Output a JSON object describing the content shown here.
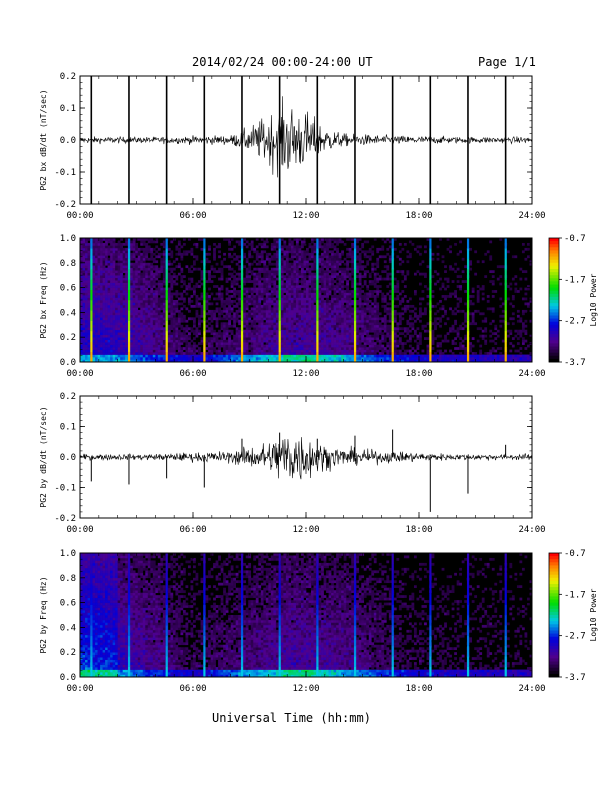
{
  "header": {
    "title": "2014/02/24  00:00-24:00 UT",
    "page": "Page 1/1"
  },
  "footer": {
    "xlabel": "Universal Time (hh:mm)"
  },
  "chart_data": [
    {
      "type": "line",
      "ylabel": "PG2 bx dB/dt (nT/sec)",
      "xlim": [
        "00:00",
        "24:00"
      ],
      "ylim": [
        -0.2,
        0.2
      ],
      "x_ticks": [
        "00:00",
        "06:00",
        "12:00",
        "18:00",
        "24:00"
      ],
      "y_ticks": [
        "-0.2",
        "-0.1",
        "0.0",
        "0.1",
        "0.2"
      ],
      "noise_envelope": {
        "x_hours": [
          0,
          4,
          8,
          9,
          10,
          11,
          12,
          13,
          14,
          16,
          20,
          24
        ],
        "amplitude": [
          0.01,
          0.01,
          0.015,
          0.04,
          0.08,
          0.12,
          0.09,
          0.04,
          0.02,
          0.015,
          0.01,
          0.01
        ]
      },
      "spikes": [
        {
          "x_hours": 0.6,
          "y": -0.2
        },
        {
          "x_hours": 2.6,
          "y": -0.2
        },
        {
          "x_hours": 4.6,
          "y": -0.2
        },
        {
          "x_hours": 6.6,
          "y": -0.2
        },
        {
          "x_hours": 8.6,
          "y": -0.2
        },
        {
          "x_hours": 10.6,
          "y": -0.2
        },
        {
          "x_hours": 12.6,
          "y": -0.2
        },
        {
          "x_hours": 14.6,
          "y": -0.2
        },
        {
          "x_hours": 16.6,
          "y": -0.2
        },
        {
          "x_hours": 18.6,
          "y": -0.2
        },
        {
          "x_hours": 20.6,
          "y": -0.2
        },
        {
          "x_hours": 22.6,
          "y": -0.2
        }
      ]
    },
    {
      "type": "heatmap",
      "ylabel": "PG2 bx Freq (Hz)",
      "xlim": [
        "00:00",
        "24:00"
      ],
      "ylim": [
        0.0,
        1.0
      ],
      "x_ticks": [
        "00:00",
        "06:00",
        "12:00",
        "18:00",
        "24:00"
      ],
      "y_ticks": [
        "0.0",
        "0.2",
        "0.4",
        "0.6",
        "0.8",
        "1.0"
      ],
      "colorbar": {
        "label": "Log10 Power",
        "min": -3.7,
        "max": -0.7,
        "ticks": [
          "-0.7",
          "-1.7",
          "-2.7",
          "-3.7"
        ]
      },
      "vertical_lines_hours": [
        0.6,
        2.6,
        4.6,
        6.6,
        8.6,
        10.6,
        12.6,
        14.6,
        16.6,
        18.6,
        20.6,
        22.6
      ]
    },
    {
      "type": "line",
      "ylabel": "PG2 by dB/dt (nT/sec)",
      "xlim": [
        "00:00",
        "24:00"
      ],
      "ylim": [
        -0.2,
        0.2
      ],
      "x_ticks": [
        "00:00",
        "06:00",
        "12:00",
        "18:00",
        "24:00"
      ],
      "y_ticks": [
        "-0.2",
        "-0.1",
        "0.0",
        "0.1",
        "0.2"
      ],
      "noise_envelope": {
        "x_hours": [
          0,
          4,
          6,
          8,
          10,
          11,
          12,
          13,
          14,
          16,
          18,
          20,
          24
        ],
        "amplitude": [
          0.01,
          0.01,
          0.015,
          0.02,
          0.05,
          0.1,
          0.08,
          0.04,
          0.03,
          0.02,
          0.015,
          0.01,
          0.01
        ]
      },
      "spikes": [
        {
          "x_hours": 0.6,
          "y": -0.08
        },
        {
          "x_hours": 2.6,
          "y": -0.09
        },
        {
          "x_hours": 4.6,
          "y": -0.07
        },
        {
          "x_hours": 6.6,
          "y": -0.1
        },
        {
          "x_hours": 8.6,
          "y": 0.06
        },
        {
          "x_hours": 10.6,
          "y": 0.08
        },
        {
          "x_hours": 12.6,
          "y": 0.06
        },
        {
          "x_hours": 14.6,
          "y": 0.07
        },
        {
          "x_hours": 16.6,
          "y": 0.09
        },
        {
          "x_hours": 18.6,
          "y": -0.18
        },
        {
          "x_hours": 20.6,
          "y": -0.12
        },
        {
          "x_hours": 22.6,
          "y": 0.04
        }
      ]
    },
    {
      "type": "heatmap",
      "ylabel": "PG2 by Freq (Hz)",
      "xlim": [
        "00:00",
        "24:00"
      ],
      "ylim": [
        0.0,
        1.0
      ],
      "x_ticks": [
        "00:00",
        "06:00",
        "12:00",
        "18:00",
        "24:00"
      ],
      "y_ticks": [
        "0.0",
        "0.2",
        "0.4",
        "0.6",
        "0.8",
        "1.0"
      ],
      "colorbar": {
        "label": "Log10 Power",
        "min": -3.7,
        "max": -0.7,
        "ticks": [
          "-0.7",
          "-1.7",
          "-2.7",
          "-3.7"
        ]
      },
      "vertical_lines_hours": [
        0.6,
        2.6,
        4.6,
        6.6,
        8.6,
        10.6,
        12.6,
        14.6,
        16.6,
        18.6,
        20.6,
        22.6
      ]
    }
  ]
}
